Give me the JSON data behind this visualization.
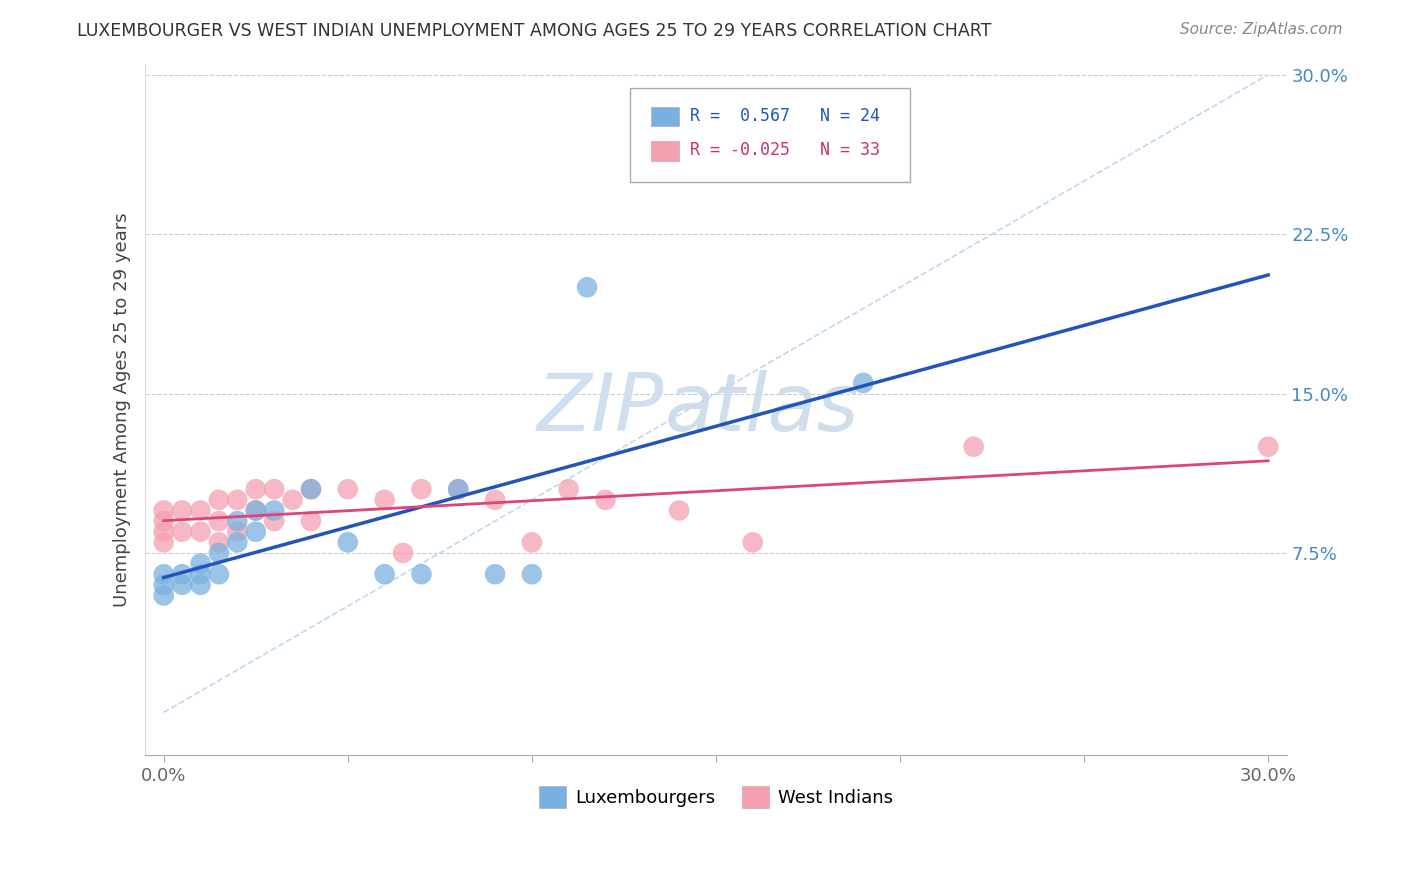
{
  "title": "LUXEMBOURGER VS WEST INDIAN UNEMPLOYMENT AMONG AGES 25 TO 29 YEARS CORRELATION CHART",
  "source": "Source: ZipAtlas.com",
  "ylabel": "Unemployment Among Ages 25 to 29 years",
  "xlim": [
    -0.005,
    0.305
  ],
  "ylim": [
    -0.02,
    0.305
  ],
  "xtick_positions": [
    0.0,
    0.05,
    0.1,
    0.15,
    0.2,
    0.25,
    0.3
  ],
  "xtick_labels_show": [
    "0.0%",
    "",
    "",
    "",
    "",
    "",
    "30.0%"
  ],
  "ytick_positions": [
    0.075,
    0.15,
    0.225,
    0.3
  ],
  "ytick_labels": [
    "7.5%",
    "15.0%",
    "22.5%",
    "30.0%"
  ],
  "grid_color": "#cccccc",
  "background_color": "#ffffff",
  "luxembourger_color": "#7ab0e0",
  "west_indian_color": "#f4a0b0",
  "luxembourger_line_color": "#2255bb",
  "west_indian_line_color": "#dd4477",
  "diagonal_line_color": "#c0d8f0",
  "R_luxembourger": 0.567,
  "N_luxembourger": 24,
  "R_west_indian": -0.025,
  "N_west_indian": 33,
  "watermark_zip": "ZIP",
  "watermark_atlas": "atlas",
  "watermark_color": "#d0dff0",
  "lux_x": [
    0.0,
    0.0,
    0.0,
    0.005,
    0.005,
    0.01,
    0.01,
    0.01,
    0.015,
    0.015,
    0.02,
    0.02,
    0.025,
    0.025,
    0.03,
    0.04,
    0.05,
    0.06,
    0.07,
    0.08,
    0.09,
    0.1,
    0.115,
    0.19
  ],
  "lux_y": [
    0.055,
    0.06,
    0.065,
    0.06,
    0.065,
    0.06,
    0.065,
    0.07,
    0.065,
    0.075,
    0.08,
    0.09,
    0.085,
    0.095,
    0.095,
    0.105,
    0.08,
    0.065,
    0.065,
    0.105,
    0.065,
    0.065,
    0.2,
    0.155
  ],
  "wi_x": [
    0.0,
    0.0,
    0.0,
    0.0,
    0.005,
    0.005,
    0.01,
    0.01,
    0.015,
    0.015,
    0.015,
    0.02,
    0.02,
    0.025,
    0.025,
    0.03,
    0.03,
    0.035,
    0.04,
    0.04,
    0.05,
    0.06,
    0.065,
    0.07,
    0.08,
    0.09,
    0.1,
    0.11,
    0.12,
    0.14,
    0.16,
    0.22,
    0.3
  ],
  "wi_y": [
    0.08,
    0.085,
    0.09,
    0.095,
    0.085,
    0.095,
    0.085,
    0.095,
    0.08,
    0.09,
    0.1,
    0.085,
    0.1,
    0.095,
    0.105,
    0.09,
    0.105,
    0.1,
    0.09,
    0.105,
    0.105,
    0.1,
    0.075,
    0.105,
    0.105,
    0.1,
    0.08,
    0.105,
    0.1,
    0.095,
    0.08,
    0.125,
    0.125
  ]
}
